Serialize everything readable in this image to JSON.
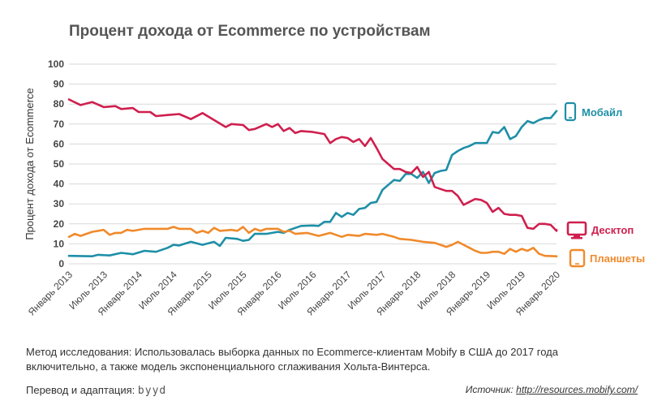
{
  "chart_data": {
    "type": "line",
    "title": "Процент дохода от Ecommerce по устройствам",
    "ylabel": "Процент дохода от Ecommerce",
    "xlabel": "",
    "ylim": [
      0,
      100
    ],
    "yticks": [
      0,
      10,
      20,
      30,
      40,
      50,
      60,
      70,
      80,
      90,
      100
    ],
    "xlim": [
      "2013-01",
      "2020-01"
    ],
    "xticks": [
      {
        "x": "2013-01",
        "label": "Январь 2013"
      },
      {
        "x": "2013-07",
        "label": "Июль 2013"
      },
      {
        "x": "2014-01",
        "label": "Январь 2014"
      },
      {
        "x": "2014-07",
        "label": "Июль 2014"
      },
      {
        "x": "2015-01",
        "label": "Январь 2015"
      },
      {
        "x": "2015-07",
        "label": "Июль 2015"
      },
      {
        "x": "2016-01",
        "label": "Январь 2016"
      },
      {
        "x": "2016-07",
        "label": "Июль 2016"
      },
      {
        "x": "2017-01",
        "label": "Январь 2017"
      },
      {
        "x": "2017-07",
        "label": "Июль 2017"
      },
      {
        "x": "2018-01",
        "label": "Январь 2018"
      },
      {
        "x": "2018-07",
        "label": "Июль 2018"
      },
      {
        "x": "2019-01",
        "label": "Январь 2019"
      },
      {
        "x": "2019-07",
        "label": "Июль 2019"
      },
      {
        "x": "2020-01",
        "label": "Январь 2020"
      }
    ],
    "grid": true,
    "legend_placement": "right",
    "series": [
      {
        "name": "Мобайл",
        "icon": "smartphone-icon",
        "color": "#1e8fa7",
        "points": [
          [
            "2013-01",
            4
          ],
          [
            "2013-03",
            3.9
          ],
          [
            "2013-05",
            3.8
          ],
          [
            "2013-06",
            4.5
          ],
          [
            "2013-08",
            4.2
          ],
          [
            "2013-10",
            5.5
          ],
          [
            "2013-12",
            4.8
          ],
          [
            "2014-02",
            6.5
          ],
          [
            "2014-04",
            6
          ],
          [
            "2014-06",
            8
          ],
          [
            "2014-07",
            9.5
          ],
          [
            "2014-08",
            9.2
          ],
          [
            "2014-10",
            11
          ],
          [
            "2014-12",
            9.5
          ],
          [
            "2015-02",
            11
          ],
          [
            "2015-03",
            9
          ],
          [
            "2015-04",
            13
          ],
          [
            "2015-06",
            12.5
          ],
          [
            "2015-07",
            11.5
          ],
          [
            "2015-08",
            12
          ],
          [
            "2015-09",
            15
          ],
          [
            "2015-11",
            15
          ],
          [
            "2016-01",
            16
          ],
          [
            "2016-02",
            15.5
          ],
          [
            "2016-03",
            17
          ],
          [
            "2016-05",
            19
          ],
          [
            "2016-07",
            19.2
          ],
          [
            "2016-08",
            19
          ],
          [
            "2016-09",
            21
          ],
          [
            "2016-10",
            21
          ],
          [
            "2016-11",
            25.5
          ],
          [
            "2016-12",
            23.5
          ],
          [
            "2017-01",
            25.5
          ],
          [
            "2017-02",
            24.5
          ],
          [
            "2017-03",
            27.5
          ],
          [
            "2017-04",
            28
          ],
          [
            "2017-05",
            30.5
          ],
          [
            "2017-06",
            31
          ],
          [
            "2017-07",
            37
          ],
          [
            "2017-08",
            39.5
          ],
          [
            "2017-09",
            42
          ],
          [
            "2017-10",
            41.5
          ],
          [
            "2017-11",
            45
          ],
          [
            "2017-12",
            45
          ],
          [
            "2018-01",
            43
          ],
          [
            "2018-02",
            46
          ],
          [
            "2018-03",
            40.5
          ],
          [
            "2018-04",
            45.5
          ],
          [
            "2018-05",
            46.5
          ],
          [
            "2018-06",
            47
          ],
          [
            "2018-07",
            54.5
          ],
          [
            "2018-08",
            56.5
          ],
          [
            "2018-09",
            58
          ],
          [
            "2018-10",
            59
          ],
          [
            "2018-11",
            60.5
          ],
          [
            "2018-12",
            60.5
          ],
          [
            "2019-01",
            60.5
          ],
          [
            "2019-02",
            66
          ],
          [
            "2019-03",
            65.5
          ],
          [
            "2019-04",
            68.5
          ],
          [
            "2019-05",
            62.5
          ],
          [
            "2019-06",
            64
          ],
          [
            "2019-07",
            68.5
          ],
          [
            "2019-08",
            71.5
          ],
          [
            "2019-09",
            70.5
          ],
          [
            "2019-10",
            72
          ],
          [
            "2019-11",
            73
          ],
          [
            "2019-12",
            73
          ],
          [
            "2020-01",
            76.5
          ],
          [
            "2020-02",
            76.5
          ]
        ]
      },
      {
        "name": "Десктоп",
        "icon": "desktop-monitor-icon",
        "color": "#cf1f4e",
        "points": [
          [
            "2013-01",
            82.3
          ],
          [
            "2013-03",
            79.5
          ],
          [
            "2013-05",
            81
          ],
          [
            "2013-07",
            78.5
          ],
          [
            "2013-09",
            79
          ],
          [
            "2013-10",
            77.5
          ],
          [
            "2013-12",
            78
          ],
          [
            "2014-01",
            76
          ],
          [
            "2014-03",
            76
          ],
          [
            "2014-04",
            74
          ],
          [
            "2014-06",
            74.5
          ],
          [
            "2014-08",
            75
          ],
          [
            "2014-10",
            72.5
          ],
          [
            "2014-12",
            75.5
          ],
          [
            "2015-02",
            72
          ],
          [
            "2015-04",
            68.5
          ],
          [
            "2015-05",
            70
          ],
          [
            "2015-07",
            69.5
          ],
          [
            "2015-08",
            67
          ],
          [
            "2015-09",
            67.5
          ],
          [
            "2015-11",
            70
          ],
          [
            "2015-12",
            68.5
          ],
          [
            "2016-01",
            70
          ],
          [
            "2016-02",
            66.5
          ],
          [
            "2016-03",
            68
          ],
          [
            "2016-04",
            65.5
          ],
          [
            "2016-05",
            66.5
          ],
          [
            "2016-07",
            66
          ],
          [
            "2016-09",
            65
          ],
          [
            "2016-10",
            60.5
          ],
          [
            "2016-11",
            62.5
          ],
          [
            "2016-12",
            63.5
          ],
          [
            "2017-01",
            63
          ],
          [
            "2017-02",
            61
          ],
          [
            "2017-03",
            62.5
          ],
          [
            "2017-04",
            59
          ],
          [
            "2017-05",
            63
          ],
          [
            "2017-06",
            58
          ],
          [
            "2017-07",
            52.5
          ],
          [
            "2017-08",
            50
          ],
          [
            "2017-09",
            47.5
          ],
          [
            "2017-10",
            47.5
          ],
          [
            "2017-11",
            46
          ],
          [
            "2017-12",
            45.5
          ],
          [
            "2018-01",
            48.5
          ],
          [
            "2018-02",
            43.5
          ],
          [
            "2018-03",
            46
          ],
          [
            "2018-04",
            38.5
          ],
          [
            "2018-05",
            37.5
          ],
          [
            "2018-06",
            36.5
          ],
          [
            "2018-07",
            36.5
          ],
          [
            "2018-08",
            34
          ],
          [
            "2018-09",
            29.5
          ],
          [
            "2018-10",
            31
          ],
          [
            "2018-11",
            32.5
          ],
          [
            "2018-12",
            32
          ],
          [
            "2019-01",
            30.5
          ],
          [
            "2019-02",
            26
          ],
          [
            "2019-03",
            28
          ],
          [
            "2019-04",
            25
          ],
          [
            "2019-05",
            24.5
          ],
          [
            "2019-06",
            24.5
          ],
          [
            "2019-07",
            24
          ],
          [
            "2019-08",
            18
          ],
          [
            "2019-09",
            17.5
          ],
          [
            "2019-10",
            20
          ],
          [
            "2019-11",
            20
          ],
          [
            "2019-12",
            19.5
          ],
          [
            "2020-01",
            16.5
          ],
          [
            "2020-02",
            17
          ]
        ]
      },
      {
        "name": "Планшеты",
        "icon": "tablet-icon",
        "color": "#f08a2b",
        "points": [
          [
            "2013-01",
            13.5
          ],
          [
            "2013-02",
            15
          ],
          [
            "2013-03",
            14
          ],
          [
            "2013-05",
            16
          ],
          [
            "2013-07",
            17
          ],
          [
            "2013-08",
            14.5
          ],
          [
            "2013-09",
            15.5
          ],
          [
            "2013-10",
            15.5
          ],
          [
            "2013-11",
            17
          ],
          [
            "2013-12",
            16.5
          ],
          [
            "2014-02",
            17.5
          ],
          [
            "2014-04",
            17.5
          ],
          [
            "2014-06",
            17.5
          ],
          [
            "2014-07",
            18.5
          ],
          [
            "2014-08",
            17.5
          ],
          [
            "2014-10",
            17.5
          ],
          [
            "2014-11",
            15.5
          ],
          [
            "2014-12",
            16.5
          ],
          [
            "2015-01",
            15.5
          ],
          [
            "2015-02",
            18
          ],
          [
            "2015-03",
            16.5
          ],
          [
            "2015-05",
            17
          ],
          [
            "2015-06",
            16.5
          ],
          [
            "2015-07",
            18.5
          ],
          [
            "2015-08",
            15.5
          ],
          [
            "2015-09",
            17.5
          ],
          [
            "2015-10",
            16.5
          ],
          [
            "2015-11",
            17.5
          ],
          [
            "2016-01",
            17.5
          ],
          [
            "2016-02",
            16
          ],
          [
            "2016-03",
            16.5
          ],
          [
            "2016-04",
            15
          ],
          [
            "2016-06",
            15.5
          ],
          [
            "2016-08",
            14
          ],
          [
            "2016-10",
            15.5
          ],
          [
            "2016-11",
            14.5
          ],
          [
            "2016-12",
            13.5
          ],
          [
            "2017-01",
            14.5
          ],
          [
            "2017-03",
            14
          ],
          [
            "2017-04",
            15
          ],
          [
            "2017-06",
            14.5
          ],
          [
            "2017-07",
            15
          ],
          [
            "2017-09",
            13.5
          ],
          [
            "2017-10",
            12.5
          ],
          [
            "2017-12",
            12
          ],
          [
            "2018-02",
            11
          ],
          [
            "2018-04",
            10.5
          ],
          [
            "2018-05",
            9.5
          ],
          [
            "2018-06",
            8.5
          ],
          [
            "2018-07",
            9.5
          ],
          [
            "2018-08",
            11
          ],
          [
            "2018-09",
            9.5
          ],
          [
            "2018-10",
            8
          ],
          [
            "2018-11",
            6.5
          ],
          [
            "2018-12",
            5.5
          ],
          [
            "2019-01",
            5.5
          ],
          [
            "2019-02",
            6
          ],
          [
            "2019-03",
            6
          ],
          [
            "2019-04",
            5
          ],
          [
            "2019-05",
            7.5
          ],
          [
            "2019-06",
            6
          ],
          [
            "2019-07",
            7.5
          ],
          [
            "2019-08",
            6.5
          ],
          [
            "2019-09",
            8
          ],
          [
            "2019-10",
            5
          ],
          [
            "2019-11",
            4
          ],
          [
            "2020-01",
            3.8
          ],
          [
            "2020-03",
            3.7
          ]
        ]
      }
    ]
  },
  "footer": {
    "method_note": "Метод исследования: Использовалась выборка данных по Ecommerce-клиентам Mobify в США до 2017 года включительно, а также модель экспоненциального сглаживания Хольта-Винтерса.",
    "credit_label": "Перевод и адаптация:",
    "credit_brand": "byyd",
    "source_label": "Источник:",
    "source_url": "http://resources.mobify.com/"
  }
}
